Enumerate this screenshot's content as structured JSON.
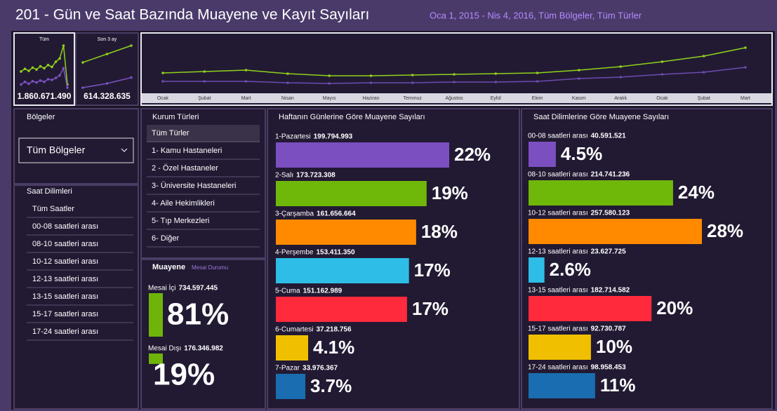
{
  "header": {
    "title": "201 - Gün ve Saat Bazında Muayene ve Kayıt Sayıları",
    "subtitle": "Oca 1, 2015 - Nis 4, 2016, Tüm Bölgeler, Tüm Türler"
  },
  "kpis": [
    {
      "label": "Tüm",
      "value": "1.860.671.490",
      "series": [
        {
          "color": "#8fd21a",
          "values": [
            40,
            44,
            41,
            46,
            43,
            48,
            45,
            50,
            47,
            55,
            60,
            80,
            20
          ]
        },
        {
          "color": "#7b52c4",
          "values": [
            20,
            24,
            21,
            25,
            23,
            26,
            24,
            28,
            27,
            30,
            34,
            45,
            15
          ]
        }
      ]
    },
    {
      "label": "Son 3 ay",
      "value": "614.328.635",
      "series": [
        {
          "color": "#8fd21a",
          "values": [
            60,
            70,
            80
          ]
        },
        {
          "color": "#7b52c4",
          "values": [
            30,
            35,
            42
          ]
        }
      ]
    }
  ],
  "timeline": {
    "months": [
      "Ocak",
      "Şubat",
      "Mart",
      "Nisan",
      "Mayıs",
      "Haziran",
      "Temmuz",
      "Ağustos",
      "Eylül",
      "Ekim",
      "Kasım",
      "Aralık",
      "Ocak",
      "Şubat",
      "Mart"
    ],
    "series": [
      {
        "color": "#8fd21a",
        "values": [
          46,
          48,
          50,
          45,
          42,
          42,
          43,
          44,
          45,
          46,
          50,
          55,
          62,
          70,
          82
        ]
      },
      {
        "color": "#6a4cb0",
        "values": [
          34,
          34,
          34,
          32,
          31,
          32,
          32,
          33,
          33,
          34,
          38,
          40,
          44,
          47,
          54
        ]
      }
    ]
  },
  "regions": {
    "title": "Bölgeler",
    "selected": "Tüm Bölgeler"
  },
  "time_slots": {
    "title": "Saat Dilimleri",
    "items": [
      "Tüm Saatler",
      "00-08 saatleri arası",
      "08-10 saatleri arası",
      "10-12 saatleri arası",
      "12-13 saatleri arası",
      "13-15 saatleri arası",
      "15-17 saatleri arası",
      "17-24 saatleri arası"
    ]
  },
  "institutions": {
    "title": "Kurum Türleri",
    "items": [
      "Tüm Türler",
      "1- Kamu Hastaneleri",
      "2 - Özel Hastaneler",
      "3- Üniversite Hastaneleri",
      "4- Aile Hekimlikleri",
      "5- Tıp Merkezleri",
      "6- Diğer"
    ]
  },
  "shift": {
    "title": "Muayene",
    "subtitle": "Mesai Durumu",
    "rows": [
      {
        "label": "Mesai İçi",
        "value": 734597445,
        "value_label": "734.597.445",
        "share": "81%",
        "color": "#6fb40a"
      },
      {
        "label": "Mesai Dışı",
        "value": 176346982,
        "value_label": "176.346.982",
        "share": "19%",
        "color": "#6fb40a"
      }
    ]
  },
  "weekdays": {
    "title": "Haftanın Günlerine Göre Muayene Sayıları",
    "rows": [
      {
        "label": "1-Pazartesi",
        "value": 199794993,
        "value_label": "199.794.993",
        "share": "22%",
        "color": "#7b4fc0"
      },
      {
        "label": "2-Salı",
        "value": 173723308,
        "value_label": "173.723.308",
        "share": "19%",
        "color": "#6fb80a"
      },
      {
        "label": "3-Çarşamba",
        "value": 161656664,
        "value_label": "161.656.664",
        "share": "18%",
        "color": "#ff8a00"
      },
      {
        "label": "4-Perşembe",
        "value": 153411350,
        "value_label": "153.411.350",
        "share": "17%",
        "color": "#2ebde6"
      },
      {
        "label": "5-Cuma",
        "value": 151162989,
        "value_label": "151.162.989",
        "share": "17%",
        "color": "#ff2a3c"
      },
      {
        "label": "6-Cumartesi",
        "value": 37218756,
        "value_label": "37.218.756",
        "share": "4.1%",
        "color": "#f0c000"
      },
      {
        "label": "7-Pazar",
        "value": 33976367,
        "value_label": "33.976.367",
        "share": "3.7%",
        "color": "#1a6db0"
      }
    ]
  },
  "hour_slots": {
    "title": "Saat Dilimlerine Göre Muayene Sayıları",
    "rows": [
      {
        "label": "00-08 saatleri arası",
        "value": 40591521,
        "value_label": "40.591.521",
        "share": "4.5%",
        "color": "#7b4fc0"
      },
      {
        "label": "08-10 saatleri arası",
        "value": 214741236,
        "value_label": "214.741.236",
        "share": "24%",
        "color": "#6fb80a"
      },
      {
        "label": "10-12 saatleri arası",
        "value": 257580123,
        "value_label": "257.580.123",
        "share": "28%",
        "color": "#ff8a00"
      },
      {
        "label": "12-13 saatleri arası",
        "value": 23627725,
        "value_label": "23.627.725",
        "share": "2.6%",
        "color": "#2ebde6"
      },
      {
        "label": "13-15 saatleri arası",
        "value": 182714582,
        "value_label": "182.714.582",
        "share": "20%",
        "color": "#ff2a3c"
      },
      {
        "label": "15-17 saatleri arası",
        "value": 92730787,
        "value_label": "92.730.787",
        "share": "10%",
        "color": "#f0c000"
      },
      {
        "label": "17-24 saatleri arası",
        "value": 98958453,
        "value_label": "98.958.453",
        "share": "11%",
        "color": "#1a6db0"
      }
    ]
  }
}
